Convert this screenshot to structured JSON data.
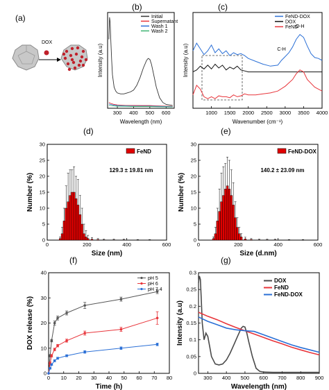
{
  "panels": {
    "a": {
      "label": "(a)",
      "dox_label": "DOX"
    },
    "b": {
      "label": "(b)"
    },
    "c": {
      "label": "(c)"
    },
    "d": {
      "label": "(d)"
    },
    "e": {
      "label": "(e)"
    },
    "f": {
      "label": "(f)"
    },
    "g": {
      "label": "(g)"
    }
  },
  "colors": {
    "black": "#3a3a3a",
    "red": "#e8343a",
    "blue": "#2a6fd6",
    "green": "#3cb371",
    "bar_red": "#e00000",
    "gray": "#555555"
  },
  "chart_data": [
    {
      "panel": "b",
      "type": "line",
      "xlabel": "Wavelength (nm)",
      "ylabel": "Intensity (a.u)",
      "xlim": [
        240,
        650
      ],
      "ylim": [
        0,
        1
      ],
      "xticks": [
        300,
        400,
        500,
        600
      ],
      "legend": "top-right",
      "series": [
        {
          "name": "Initial",
          "color": "#333333",
          "x": [
            248,
            252,
            256,
            260,
            265,
            270,
            280,
            290,
            300,
            320,
            340,
            360,
            380,
            400,
            420,
            440,
            460,
            480,
            490,
            500,
            510,
            520,
            540,
            560,
            580,
            600,
            620,
            640
          ],
          "y": [
            0.72,
            0.95,
            0.9,
            0.7,
            0.5,
            0.35,
            0.22,
            0.18,
            0.16,
            0.15,
            0.15,
            0.16,
            0.17,
            0.19,
            0.24,
            0.32,
            0.42,
            0.5,
            0.52,
            0.51,
            0.46,
            0.38,
            0.22,
            0.11,
            0.06,
            0.04,
            0.035,
            0.03
          ]
        },
        {
          "name": "Supernatant",
          "color": "#e8343a",
          "x": [
            248,
            260,
            280,
            300,
            350,
            400,
            450,
            500,
            550,
            600,
            640
          ],
          "y": [
            0.06,
            0.05,
            0.04,
            0.035,
            0.03,
            0.03,
            0.028,
            0.028,
            0.025,
            0.022,
            0.02
          ]
        },
        {
          "name": "Wash 1",
          "color": "#2a6fd6",
          "x": [
            248,
            260,
            280,
            300,
            350,
            400,
            450,
            500,
            550,
            600,
            640
          ],
          "y": [
            0.045,
            0.04,
            0.032,
            0.028,
            0.025,
            0.022,
            0.022,
            0.022,
            0.02,
            0.018,
            0.017
          ]
        },
        {
          "name": "Wash 2",
          "color": "#3cb371",
          "x": [
            248,
            260,
            280,
            300,
            350,
            400,
            450,
            500,
            550,
            600,
            640
          ],
          "y": [
            0.03,
            0.028,
            0.024,
            0.022,
            0.02,
            0.018,
            0.018,
            0.018,
            0.016,
            0.015,
            0.014
          ]
        }
      ]
    },
    {
      "panel": "c",
      "type": "line",
      "xlabel": "Wavenumber (cm⁻¹)",
      "ylabel": "Intensity (a.u)",
      "xlim": [
        500,
        4000
      ],
      "ylim": [
        0,
        1
      ],
      "xticks": [
        1000,
        1500,
        2000,
        2500,
        3000,
        3500,
        4000
      ],
      "legend": "top-right",
      "annotations": [
        "C-H",
        "O-H"
      ],
      "series": [
        {
          "name": "FeND-DOX",
          "color": "#2a6fd6",
          "x": [
            500,
            600,
            700,
            800,
            900,
            1000,
            1100,
            1200,
            1300,
            1400,
            1500,
            1600,
            1700,
            1800,
            1900,
            2000,
            2200,
            2400,
            2600,
            2800,
            2900,
            3000,
            3100,
            3200,
            3300,
            3400,
            3500,
            3600,
            3700,
            3800,
            3900,
            4000
          ],
          "y": [
            0.6,
            0.68,
            0.62,
            0.56,
            0.6,
            0.66,
            0.58,
            0.62,
            0.57,
            0.6,
            0.55,
            0.58,
            0.56,
            0.57,
            0.55,
            0.52,
            0.49,
            0.46,
            0.44,
            0.45,
            0.5,
            0.54,
            0.58,
            0.64,
            0.72,
            0.77,
            0.74,
            0.65,
            0.57,
            0.53,
            0.52,
            0.5
          ]
        },
        {
          "name": "DOX",
          "color": "#111111",
          "x": [
            500,
            600,
            700,
            800,
            900,
            1000,
            1100,
            1200,
            1300,
            1400,
            1500,
            1600,
            1700,
            1800,
            1900,
            2000,
            2400,
            2800,
            3200,
            3600,
            4000
          ],
          "y": [
            0.38,
            0.4,
            0.44,
            0.41,
            0.45,
            0.41,
            0.46,
            0.42,
            0.45,
            0.4,
            0.43,
            0.41,
            0.44,
            0.4,
            0.39,
            0.38,
            0.38,
            0.38,
            0.38,
            0.38,
            0.38
          ]
        },
        {
          "name": "FeND",
          "color": "#e8343a",
          "x": [
            500,
            600,
            700,
            800,
            900,
            1000,
            1100,
            1200,
            1300,
            1400,
            1500,
            1600,
            1700,
            1800,
            1900,
            2000,
            2200,
            2400,
            2600,
            2800,
            3000,
            3200,
            3300,
            3400,
            3500,
            3600,
            3800,
            4000
          ],
          "y": [
            0.14,
            0.24,
            0.2,
            0.12,
            0.1,
            0.12,
            0.1,
            0.13,
            0.12,
            0.12,
            0.11,
            0.14,
            0.12,
            0.13,
            0.15,
            0.14,
            0.14,
            0.15,
            0.16,
            0.18,
            0.23,
            0.3,
            0.36,
            0.4,
            0.38,
            0.3,
            0.22,
            0.18
          ]
        }
      ]
    },
    {
      "panel": "d",
      "type": "bar",
      "xlabel": "Size (nm)",
      "ylabel": "Number (%)",
      "xlim": [
        0,
        600
      ],
      "ylim": [
        0,
        30
      ],
      "xticks": [
        0,
        200,
        400,
        600
      ],
      "yticks": [
        0,
        5,
        10,
        15,
        20,
        25,
        30
      ],
      "legend": "top-right",
      "series_name": "FeND",
      "annotation": "129.3 ± 19.81 nm",
      "bin_width": 10,
      "x": [
        65,
        75,
        85,
        95,
        105,
        115,
        125,
        135,
        145,
        155,
        165,
        175,
        185,
        195,
        205,
        225,
        255,
        285,
        335,
        385,
        455,
        515
      ],
      "values": [
        0.5,
        2,
        6,
        10,
        12,
        14,
        15,
        15,
        13,
        11,
        8,
        5,
        2,
        1,
        0.5,
        0.3,
        0.2,
        0.1,
        0.1,
        0.1,
        0.05,
        0.05
      ],
      "errors": [
        0.5,
        2,
        4,
        7,
        9,
        8,
        7,
        8,
        7,
        8,
        6,
        5,
        3,
        2,
        1,
        0.5,
        0.3,
        0.2,
        0.2,
        0.2,
        0.1,
        0.1
      ]
    },
    {
      "panel": "e",
      "type": "bar",
      "xlabel": "Size (d.nm)",
      "ylabel": "Number (%)",
      "xlim": [
        0,
        600
      ],
      "ylim": [
        0,
        30
      ],
      "xticks": [
        0,
        200,
        400,
        600
      ],
      "yticks": [
        0,
        5,
        10,
        15,
        20,
        25,
        30
      ],
      "legend": "top-right",
      "series_name": "FeND-DOX",
      "annotation": "140.2 ± 23.09 nm",
      "bin_width": 10,
      "x": [
        75,
        85,
        95,
        105,
        115,
        125,
        135,
        145,
        155,
        165,
        175,
        185,
        195,
        205,
        215,
        235,
        265,
        305,
        345,
        385,
        455,
        525
      ],
      "values": [
        0.5,
        2,
        6,
        9,
        12,
        14,
        16,
        17,
        16,
        14,
        11,
        7,
        4,
        2,
        1,
        0.4,
        0.2,
        0.1,
        0.1,
        0.1,
        0.05,
        0.05
      ],
      "errors": [
        0.5,
        2,
        4,
        7,
        9,
        9,
        8,
        9,
        9,
        8,
        7,
        5,
        3,
        2,
        1,
        0.5,
        0.3,
        0.2,
        0.2,
        0.2,
        0.1,
        0.1
      ]
    },
    {
      "panel": "f",
      "type": "line",
      "xlabel": "Time (h)",
      "ylabel": "DOX release (%)",
      "xlim": [
        0,
        80
      ],
      "ylim": [
        0,
        40
      ],
      "xticks": [
        0,
        10,
        20,
        30,
        40,
        50,
        60,
        70,
        80
      ],
      "yticks": [
        0,
        10,
        20,
        30,
        40
      ],
      "legend": "top-right",
      "series": [
        {
          "name": "pH 5",
          "color": "#555555",
          "x": [
            0,
            1,
            2,
            4,
            6,
            12,
            24,
            48,
            72
          ],
          "y": [
            0,
            7,
            13,
            20,
            22,
            24,
            27,
            29.5,
            32.5
          ],
          "err": [
            0,
            0.5,
            0.5,
            0.8,
            0.8,
            0.8,
            1.2,
            0.8,
            0.8
          ]
        },
        {
          "name": "pH 6",
          "color": "#e8343a",
          "x": [
            0,
            1,
            2,
            4,
            6,
            12,
            24,
            48,
            72
          ],
          "y": [
            0,
            4,
            7,
            9.5,
            11,
            13,
            16,
            17.5,
            22
          ],
          "err": [
            0,
            0.5,
            0.5,
            0.5,
            0.5,
            0.6,
            0.8,
            0.8,
            2.5
          ]
        },
        {
          "name": "pH 7.4",
          "color": "#2a6fd6",
          "x": [
            0,
            1,
            2,
            4,
            6,
            12,
            24,
            48,
            72
          ],
          "y": [
            0,
            2,
            3.5,
            5,
            6,
            7,
            8.5,
            10,
            11.5
          ],
          "err": [
            0,
            0.3,
            0.3,
            0.4,
            0.4,
            0.4,
            0.5,
            0.5,
            0.5
          ]
        }
      ]
    },
    {
      "panel": "g",
      "type": "line",
      "xlabel": "Wavelength (nm)",
      "ylabel": "Intensity (a.u)",
      "xlim": [
        250,
        900
      ],
      "ylim": [
        0,
        0.3
      ],
      "xticks": [
        300,
        400,
        500,
        600,
        700,
        800,
        900
      ],
      "yticks": [
        0,
        0.05,
        0.1,
        0.15,
        0.2,
        0.25,
        0.3
      ],
      "legend": "top-right",
      "series": [
        {
          "name": "DOX",
          "color": "#4a4a4a",
          "x": [
            250,
            255,
            260,
            265,
            270,
            280,
            290,
            300,
            310,
            320,
            340,
            360,
            380,
            400,
            420,
            440,
            460,
            480,
            490,
            500,
            510,
            520,
            540,
            560,
            580,
            600,
            650,
            700,
            800,
            900
          ],
          "y": [
            0.27,
            0.29,
            0.28,
            0.22,
            0.15,
            0.1,
            0.12,
            0.11,
            0.08,
            0.05,
            0.028,
            0.025,
            0.028,
            0.04,
            0.06,
            0.085,
            0.11,
            0.135,
            0.14,
            0.138,
            0.12,
            0.095,
            0.05,
            0.015,
            0.006,
            0.004,
            0.003,
            0.003,
            0.003,
            0.003
          ]
        },
        {
          "name": "FeND",
          "color": "#e8343a",
          "x": [
            250,
            300,
            350,
            400,
            450,
            500,
            550,
            600,
            650,
            700,
            750,
            800,
            850,
            900
          ],
          "y": [
            0.182,
            0.17,
            0.16,
            0.148,
            0.137,
            0.127,
            0.117,
            0.107,
            0.097,
            0.088,
            0.078,
            0.07,
            0.062,
            0.055
          ]
        },
        {
          "name": "FeND-DOX",
          "color": "#2a6fd6",
          "x": [
            250,
            300,
            350,
            400,
            450,
            500,
            550,
            600,
            650,
            700,
            750,
            800,
            850,
            900
          ],
          "y": [
            0.168,
            0.155,
            0.145,
            0.135,
            0.13,
            0.127,
            0.125,
            0.115,
            0.105,
            0.095,
            0.085,
            0.077,
            0.07,
            0.063
          ]
        }
      ]
    }
  ]
}
